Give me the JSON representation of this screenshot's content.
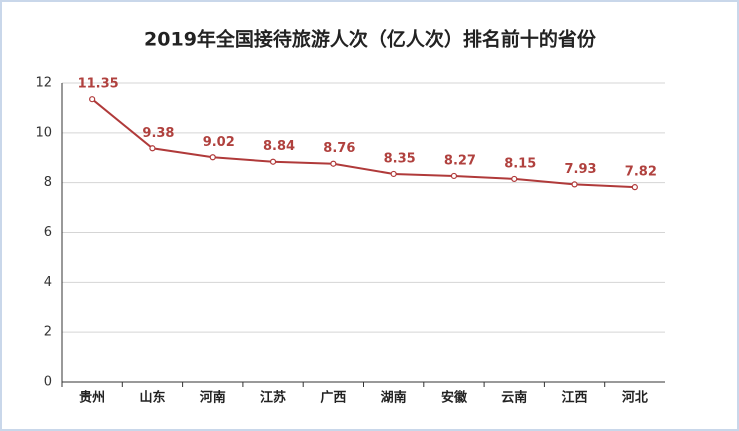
{
  "chart_data": {
    "type": "line",
    "title": "2019年全国接待旅游人次（亿人次）排名前十的省份",
    "categories": [
      "贵州",
      "山东",
      "河南",
      "江苏",
      "广西",
      "湖南",
      "安徽",
      "云南",
      "江西",
      "河北"
    ],
    "values": [
      11.35,
      9.38,
      9.02,
      8.84,
      8.76,
      8.35,
      8.27,
      8.15,
      7.93,
      7.82
    ],
    "color": "#b03a3a",
    "ylim": [
      0,
      12
    ],
    "yticks": [
      0,
      2,
      4,
      6,
      8,
      10,
      12
    ],
    "grid": true
  }
}
